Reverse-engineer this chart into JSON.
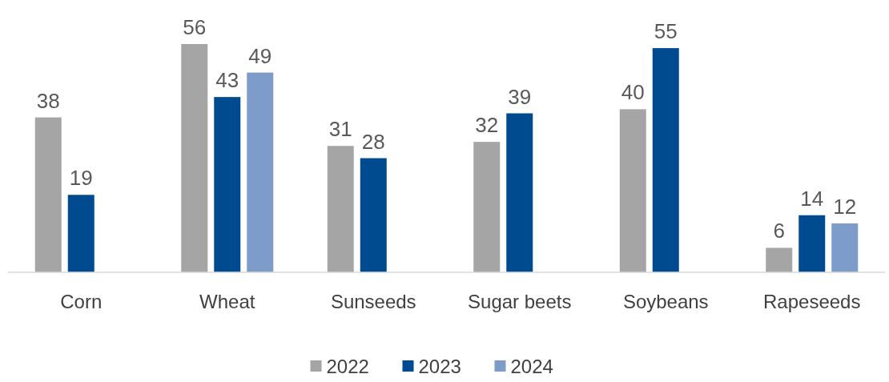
{
  "chart_data": {
    "type": "bar",
    "categories": [
      "Corn",
      "Wheat",
      "Sunseeds",
      "Sugar beets",
      "Soybeans",
      "Rapeseeds"
    ],
    "series": [
      {
        "name": "2022",
        "color": "#a5a5a5",
        "values": [
          38,
          56,
          31,
          32,
          40,
          6
        ]
      },
      {
        "name": "2023",
        "color": "#004a8f",
        "values": [
          19,
          43,
          28,
          39,
          55,
          14
        ]
      },
      {
        "name": "2024",
        "color": "#7d9cc9",
        "values": [
          null,
          49,
          null,
          null,
          null,
          12
        ]
      }
    ],
    "data_labels": true,
    "legend": "bottom",
    "grid": false
  }
}
